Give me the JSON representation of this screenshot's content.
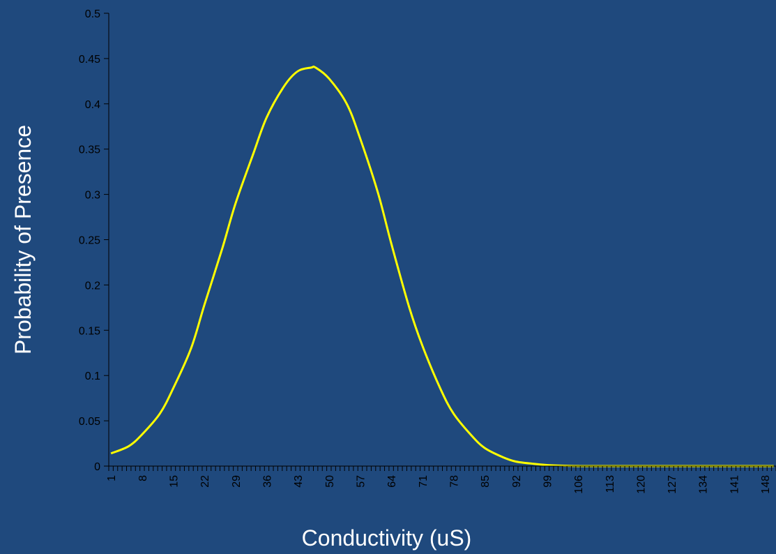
{
  "colors": {
    "background": "#1f497d",
    "line": "#ffff00",
    "axis": "#000000",
    "tick_text": "#000000",
    "title_text": "#ffffff"
  },
  "chart_data": {
    "type": "line",
    "title": "",
    "xlabel": "Conductivity (uS)",
    "ylabel": "Probability of Presence",
    "x_categories_range": [
      1,
      150
    ],
    "x_tick_labels": [
      "1",
      "8",
      "15",
      "22",
      "29",
      "36",
      "43",
      "50",
      "57",
      "64",
      "71",
      "78",
      "85",
      "92",
      "99",
      "106",
      "113",
      "120",
      "127",
      "134",
      "141",
      "148"
    ],
    "y_tick_labels": [
      "0",
      "0.05",
      "0.1",
      "0.15",
      "0.2",
      "0.25",
      "0.3",
      "0.35",
      "0.4",
      "0.45",
      "0.5"
    ],
    "ylim": [
      0,
      0.5
    ],
    "grid": false,
    "legend": "none",
    "series": [
      {
        "points": [
          [
            1,
            0.014
          ],
          [
            5,
            0.022
          ],
          [
            8,
            0.035
          ],
          [
            12,
            0.058
          ],
          [
            15,
            0.086
          ],
          [
            19,
            0.13
          ],
          [
            22,
            0.178
          ],
          [
            26,
            0.24
          ],
          [
            29,
            0.29
          ],
          [
            33,
            0.345
          ],
          [
            36,
            0.385
          ],
          [
            40,
            0.42
          ],
          [
            43,
            0.436
          ],
          [
            46,
            0.44
          ],
          [
            47,
            0.44
          ],
          [
            50,
            0.428
          ],
          [
            54,
            0.4
          ],
          [
            57,
            0.362
          ],
          [
            61,
            0.302
          ],
          [
            64,
            0.246
          ],
          [
            68,
            0.176
          ],
          [
            71,
            0.133
          ],
          [
            75,
            0.086
          ],
          [
            78,
            0.058
          ],
          [
            82,
            0.034
          ],
          [
            85,
            0.02
          ],
          [
            89,
            0.01
          ],
          [
            92,
            0.005
          ],
          [
            96,
            0.0025
          ],
          [
            99,
            0.0012
          ],
          [
            103,
            0.0004
          ],
          [
            106,
            0.0001
          ],
          [
            110,
            0
          ],
          [
            150,
            0
          ]
        ]
      }
    ]
  }
}
